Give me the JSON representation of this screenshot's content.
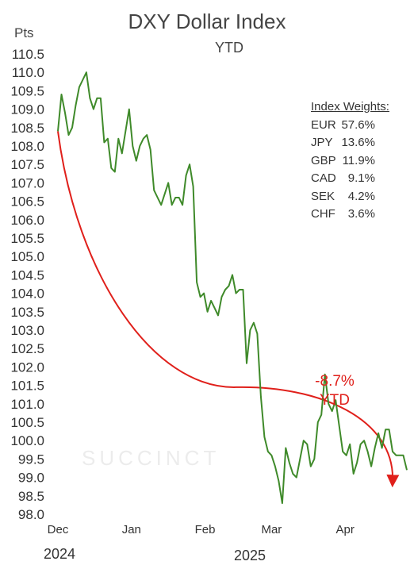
{
  "chart_data": {
    "type": "line",
    "title": "DXY Dollar Index",
    "subtitle": "YTD",
    "ylabel": "Pts",
    "ylim": [
      98.0,
      110.5
    ],
    "yticks": [
      "110.5",
      "110.0",
      "109.5",
      "109.0",
      "108.5",
      "108.0",
      "107.5",
      "107.0",
      "106.5",
      "106.0",
      "105.5",
      "105.0",
      "104.5",
      "104.0",
      "103.5",
      "103.0",
      "102.5",
      "102.0",
      "101.5",
      "101.0",
      "100.5",
      "100.0",
      "99.5",
      "99.0",
      "98.5",
      "98.0"
    ],
    "xticks": [
      "Dec",
      "Jan",
      "Feb",
      "Mar",
      "Apr"
    ],
    "year_labels": [
      "2024",
      "2025"
    ],
    "series": [
      {
        "color": "#3f8a2a",
        "x": [
          0,
          1.5,
          3,
          4.5,
          6,
          7.5,
          9,
          10.5,
          12,
          13.5,
          15,
          16.5,
          18,
          19.5,
          21,
          22.5,
          24,
          25.5,
          27,
          28.5,
          30,
          31.5,
          33,
          34.5,
          36,
          37.5,
          39,
          40.5,
          42,
          43.5,
          45,
          46.5,
          48,
          49.5,
          51,
          52.5,
          54,
          55.5,
          57,
          58.5,
          60,
          61.5,
          63,
          64.5,
          66,
          67.5,
          69,
          70.5,
          72,
          73.5,
          75,
          76.5,
          78,
          79.5,
          81,
          82.5,
          84,
          85.5,
          87,
          88.5,
          90,
          91.5,
          93,
          94.5,
          96,
          97.5,
          99,
          100.5,
          102,
          103.5,
          105,
          106.5,
          108,
          109.5,
          111,
          112.5,
          114,
          115.5,
          117,
          118.5,
          120,
          121.5,
          123,
          124.5,
          126,
          127.5,
          129,
          130.5,
          132,
          133.5,
          135,
          136.5,
          138,
          139.5,
          141,
          142.5,
          144,
          145.5,
          147
        ],
        "values": [
          108.4,
          109.4,
          108.9,
          108.3,
          108.5,
          109.1,
          109.6,
          109.8,
          110.0,
          109.3,
          109.0,
          109.3,
          109.3,
          108.1,
          108.2,
          107.4,
          107.3,
          108.2,
          107.8,
          108.4,
          109.0,
          108.0,
          107.6,
          108.0,
          108.2,
          108.3,
          107.9,
          106.8,
          106.6,
          106.4,
          106.7,
          107.0,
          106.4,
          106.6,
          106.6,
          106.4,
          107.2,
          107.5,
          106.9,
          104.3,
          103.9,
          104.0,
          103.5,
          103.8,
          103.6,
          103.4,
          103.9,
          104.1,
          104.2,
          104.5,
          104.0,
          104.1,
          104.1,
          102.1,
          103.0,
          103.2,
          102.9,
          101.2,
          100.1,
          99.7,
          99.6,
          99.3,
          98.9,
          98.3,
          99.8,
          99.4,
          99.1,
          99.0,
          99.5,
          100.0,
          99.9,
          99.3,
          99.5,
          100.5,
          100.7,
          101.8,
          101.0,
          100.8,
          101.1,
          100.4,
          99.7,
          99.6,
          99.9,
          99.1,
          99.4,
          99.9,
          100.0,
          99.7,
          99.3,
          99.8,
          100.2,
          99.8,
          100.3,
          100.3,
          99.7,
          99.6,
          99.6,
          99.6,
          99.2
        ]
      }
    ],
    "index_weights": {
      "title": "Index Weights:",
      "items": [
        {
          "ccy": "EUR",
          "pct": "57.6%"
        },
        {
          "ccy": "JPY",
          "pct": "13.6%"
        },
        {
          "ccy": "GBP",
          "pct": "11.9%"
        },
        {
          "ccy": "CAD",
          "pct": "9.1%"
        },
        {
          "ccy": "SEK",
          "pct": "4.2%"
        },
        {
          "ccy": "CHF",
          "pct": "3.6%"
        }
      ]
    },
    "annotation": {
      "line1": "-8.7%",
      "line2": "YTD",
      "color": "#e0201b"
    },
    "watermark": "SUCCINCT"
  }
}
